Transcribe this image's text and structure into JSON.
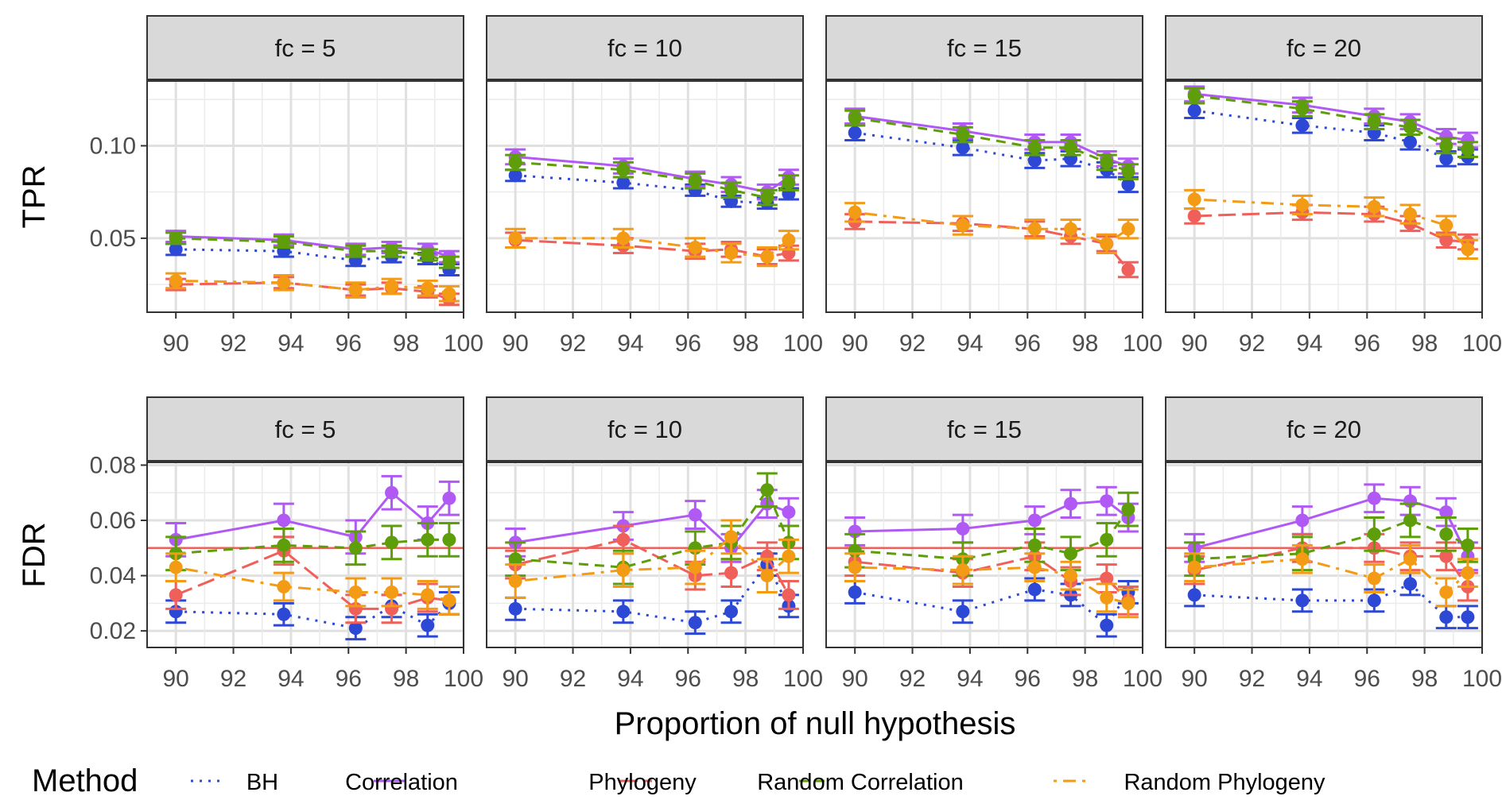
{
  "chart_data": {
    "type": "line",
    "facet_title_prefix": "fc = ",
    "facets": [
      5,
      10,
      15,
      20
    ],
    "xlabel": "Proportion of null hypothesis",
    "x": [
      90,
      93.75,
      96.25,
      97.5,
      98.75,
      99.5
    ],
    "x_ticks": [
      "90",
      "92",
      "94",
      "96",
      "98",
      "100"
    ],
    "xlim": [
      89,
      100
    ],
    "legend": {
      "title": "Method",
      "position": "bottom",
      "entries": [
        "BH",
        "Correlation",
        "Phylogeny",
        "Random Correlation",
        "Random Phylogeny"
      ]
    },
    "colors": {
      "BH": "#2E48D6",
      "Correlation": "#B159F5",
      "Phylogeny": "#F0605A",
      "Random Correlation": "#5E9E0A",
      "Random Phylogeny": "#F49B15",
      "reference_line": "#F0605A"
    },
    "line_styles": {
      "BH": "dotted",
      "Correlation": "solid",
      "Phylogeny": "longdash",
      "Random Correlation": "dashed",
      "Random Phylogeny": "dotdash"
    },
    "grid": true,
    "rows": [
      {
        "ylabel": "TPR",
        "ylim": [
          0.01,
          0.135
        ],
        "y_ticks": [
          "0.05",
          "0.10"
        ],
        "panels": [
          {
            "fc": 5,
            "series": [
              {
                "name": "BH",
                "values": [
                  0.044,
                  0.043,
                  0.038,
                  0.04,
                  0.039,
                  0.033
                ],
                "err": 0.003
              },
              {
                "name": "Correlation",
                "values": [
                  0.051,
                  0.049,
                  0.044,
                  0.045,
                  0.044,
                  0.04
                ],
                "err": 0.003
              },
              {
                "name": "Phylogeny",
                "values": [
                  0.025,
                  0.026,
                  0.022,
                  0.023,
                  0.021,
                  0.017
                ],
                "err": 0.003
              },
              {
                "name": "Random Correlation",
                "values": [
                  0.05,
                  0.048,
                  0.043,
                  0.043,
                  0.041,
                  0.037
                ],
                "err": 0.003
              },
              {
                "name": "Random Phylogeny",
                "values": [
                  0.027,
                  0.026,
                  0.022,
                  0.024,
                  0.023,
                  0.02
                ],
                "err": 0.004
              }
            ]
          },
          {
            "fc": 10,
            "series": [
              {
                "name": "BH",
                "values": [
                  0.084,
                  0.08,
                  0.076,
                  0.07,
                  0.069,
                  0.074
                ],
                "err": 0.003
              },
              {
                "name": "Correlation",
                "values": [
                  0.094,
                  0.089,
                  0.082,
                  0.079,
                  0.075,
                  0.083
                ],
                "err": 0.004
              },
              {
                "name": "Phylogeny",
                "values": [
                  0.049,
                  0.046,
                  0.043,
                  0.044,
                  0.04,
                  0.042
                ],
                "err": 0.004
              },
              {
                "name": "Random Correlation",
                "values": [
                  0.091,
                  0.087,
                  0.081,
                  0.076,
                  0.072,
                  0.08
                ],
                "err": 0.004
              },
              {
                "name": "Random Phylogeny",
                "values": [
                  0.05,
                  0.05,
                  0.045,
                  0.042,
                  0.04,
                  0.049
                ],
                "err": 0.005
              }
            ]
          },
          {
            "fc": 15,
            "series": [
              {
                "name": "BH",
                "values": [
                  0.107,
                  0.099,
                  0.092,
                  0.093,
                  0.087,
                  0.079
                ],
                "err": 0.004
              },
              {
                "name": "Correlation",
                "values": [
                  0.116,
                  0.108,
                  0.102,
                  0.102,
                  0.093,
                  0.089
                ],
                "err": 0.004
              },
              {
                "name": "Phylogeny",
                "values": [
                  0.059,
                  0.058,
                  0.055,
                  0.051,
                  0.047,
                  0.033
                ],
                "err": 0.004
              },
              {
                "name": "Random Correlation",
                "values": [
                  0.115,
                  0.106,
                  0.099,
                  0.099,
                  0.091,
                  0.086
                ],
                "err": 0.004
              },
              {
                "name": "Random Phylogeny",
                "values": [
                  0.064,
                  0.057,
                  0.055,
                  0.055,
                  0.047,
                  0.055
                ],
                "err": 0.005
              }
            ]
          },
          {
            "fc": 20,
            "series": [
              {
                "name": "BH",
                "values": [
                  0.119,
                  0.111,
                  0.107,
                  0.102,
                  0.093,
                  0.094
                ],
                "err": 0.004
              },
              {
                "name": "Correlation",
                "values": [
                  0.128,
                  0.122,
                  0.116,
                  0.113,
                  0.105,
                  0.103
                ],
                "err": 0.004
              },
              {
                "name": "Phylogeny",
                "values": [
                  0.062,
                  0.064,
                  0.063,
                  0.058,
                  0.049,
                  0.048
                ],
                "err": 0.004
              },
              {
                "name": "Random Correlation",
                "values": [
                  0.127,
                  0.12,
                  0.113,
                  0.11,
                  0.1,
                  0.098
                ],
                "err": 0.004
              },
              {
                "name": "Random Phylogeny",
                "values": [
                  0.071,
                  0.068,
                  0.067,
                  0.063,
                  0.057,
                  0.044
                ],
                "err": 0.005
              }
            ]
          }
        ]
      },
      {
        "ylabel": "FDR",
        "ylim": [
          0.014,
          0.081
        ],
        "y_ticks": [
          "0.02",
          "0.04",
          "0.06",
          "0.08"
        ],
        "reference_line": 0.05,
        "panels": [
          {
            "fc": 5,
            "series": [
              {
                "name": "BH",
                "values": [
                  0.027,
                  0.026,
                  0.021,
                  0.029,
                  0.022,
                  0.03
                ],
                "err": 0.004
              },
              {
                "name": "Correlation",
                "values": [
                  0.053,
                  0.06,
                  0.054,
                  0.07,
                  0.059,
                  0.068
                ],
                "err": 0.006
              },
              {
                "name": "Phylogeny",
                "values": [
                  0.033,
                  0.049,
                  0.028,
                  0.028,
                  0.032,
                  0.031
                ],
                "err": 0.005
              },
              {
                "name": "Random Correlation",
                "values": [
                  0.048,
                  0.051,
                  0.05,
                  0.052,
                  0.053,
                  0.053
                ],
                "err": 0.006
              },
              {
                "name": "Random Phylogeny",
                "values": [
                  0.043,
                  0.036,
                  0.034,
                  0.034,
                  0.033,
                  0.031
                ],
                "err": 0.005
              }
            ]
          },
          {
            "fc": 10,
            "series": [
              {
                "name": "BH",
                "values": [
                  0.028,
                  0.027,
                  0.023,
                  0.027,
                  0.044,
                  0.029
                ],
                "err": 0.004
              },
              {
                "name": "Correlation",
                "values": [
                  0.052,
                  0.058,
                  0.062,
                  0.05,
                  0.066,
                  0.063
                ],
                "err": 0.005
              },
              {
                "name": "Phylogeny",
                "values": [
                  0.044,
                  0.053,
                  0.04,
                  0.041,
                  0.047,
                  0.033
                ],
                "err": 0.005
              },
              {
                "name": "Random Correlation",
                "values": [
                  0.046,
                  0.043,
                  0.05,
                  0.052,
                  0.071,
                  0.052
                ],
                "err": 0.006
              },
              {
                "name": "Random Phylogeny",
                "values": [
                  0.038,
                  0.042,
                  0.043,
                  0.054,
                  0.04,
                  0.047
                ],
                "err": 0.006
              }
            ]
          },
          {
            "fc": 15,
            "series": [
              {
                "name": "BH",
                "values": [
                  0.034,
                  0.027,
                  0.035,
                  0.033,
                  0.022,
                  0.034
                ],
                "err": 0.004
              },
              {
                "name": "Correlation",
                "values": [
                  0.056,
                  0.057,
                  0.06,
                  0.066,
                  0.067,
                  0.061
                ],
                "err": 0.005
              },
              {
                "name": "Phylogeny",
                "values": [
                  0.045,
                  0.041,
                  0.047,
                  0.038,
                  0.039,
                  0.031
                ],
                "err": 0.005
              },
              {
                "name": "Random Correlation",
                "values": [
                  0.049,
                  0.046,
                  0.051,
                  0.048,
                  0.053,
                  0.064
                ],
                "err": 0.006
              },
              {
                "name": "Random Phylogeny",
                "values": [
                  0.043,
                  0.042,
                  0.043,
                  0.04,
                  0.032,
                  0.03
                ],
                "err": 0.005
              }
            ]
          },
          {
            "fc": 20,
            "series": [
              {
                "name": "BH",
                "values": [
                  0.033,
                  0.031,
                  0.031,
                  0.037,
                  0.025,
                  0.025
                ],
                "err": 0.004
              },
              {
                "name": "Correlation",
                "values": [
                  0.05,
                  0.06,
                  0.068,
                  0.067,
                  0.063,
                  0.047
                ],
                "err": 0.005
              },
              {
                "name": "Phylogeny",
                "values": [
                  0.042,
                  0.05,
                  0.05,
                  0.047,
                  0.047,
                  0.036
                ],
                "err": 0.005
              },
              {
                "name": "Random Correlation",
                "values": [
                  0.046,
                  0.048,
                  0.055,
                  0.06,
                  0.055,
                  0.051
                ],
                "err": 0.006
              },
              {
                "name": "Random Phylogeny",
                "values": [
                  0.043,
                  0.046,
                  0.039,
                  0.046,
                  0.034,
                  0.041
                ],
                "err": 0.005
              }
            ]
          }
        ]
      }
    ]
  }
}
